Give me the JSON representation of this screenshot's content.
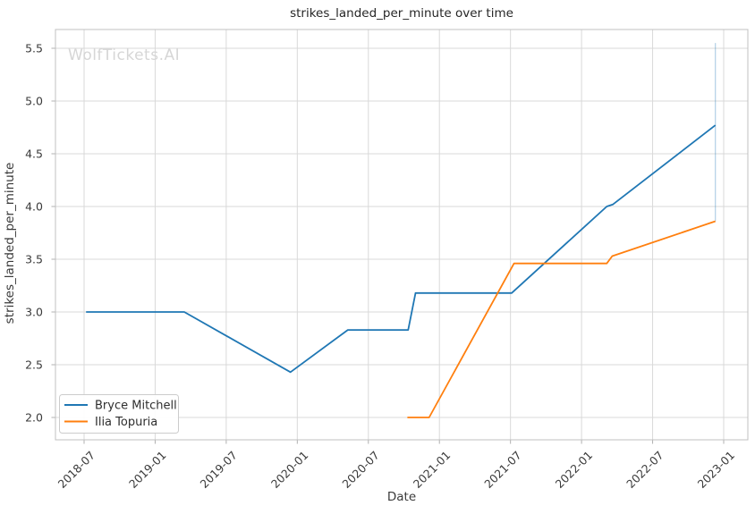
{
  "watermark": "WolfTickets.AI",
  "chart_data": {
    "type": "line",
    "title": "strikes_landed_per_minute over time",
    "xlabel": "Date",
    "ylabel": "strikes_landed_per_minute",
    "x_tick_labels": [
      "2018-07",
      "2019-01",
      "2019-07",
      "2020-01",
      "2020-07",
      "2021-01",
      "2021-07",
      "2022-01",
      "2022-07",
      "2023-01"
    ],
    "y_tick_labels": [
      "2.0",
      "2.5",
      "3.0",
      "3.5",
      "4.0",
      "4.5",
      "5.0",
      "5.5"
    ],
    "xlim": [
      "2018-04-15",
      "2023-03-03"
    ],
    "ylim": [
      1.79,
      5.68
    ],
    "grid": true,
    "legend_position": "lower left",
    "series": [
      {
        "name": "Bryce Mitchell",
        "color": "#1f77b4",
        "points": [
          [
            "2018-07-06",
            3.0
          ],
          [
            "2019-03-15",
            3.0
          ],
          [
            "2019-12-14",
            2.43
          ],
          [
            "2020-05-09",
            2.83
          ],
          [
            "2020-10-12",
            2.83
          ],
          [
            "2020-10-31",
            3.18
          ],
          [
            "2021-07-04",
            3.18
          ],
          [
            "2022-03-05",
            4.0
          ],
          [
            "2022-03-21",
            4.02
          ],
          [
            "2022-12-10",
            4.77
          ]
        ]
      },
      {
        "name": "Ilia Topuria",
        "color": "#ff7f0e",
        "points": [
          [
            "2020-10-10",
            2.0
          ],
          [
            "2020-12-05",
            2.0
          ],
          [
            "2021-07-10",
            3.46
          ],
          [
            "2022-03-05",
            3.46
          ],
          [
            "2022-03-19",
            3.53
          ],
          [
            "2022-12-10",
            3.86
          ]
        ]
      }
    ],
    "annotations": [
      {
        "type": "vline",
        "x": "2022-12-10",
        "y_from": 3.86,
        "y_to": 5.55,
        "color": "rgba(31,119,180,0.32)"
      }
    ]
  },
  "style_colors": {
    "grid": "#d9d9d9",
    "spine": "#c0c0c0",
    "tick": "#b0b0b0",
    "legend_border": "#cccccc"
  }
}
